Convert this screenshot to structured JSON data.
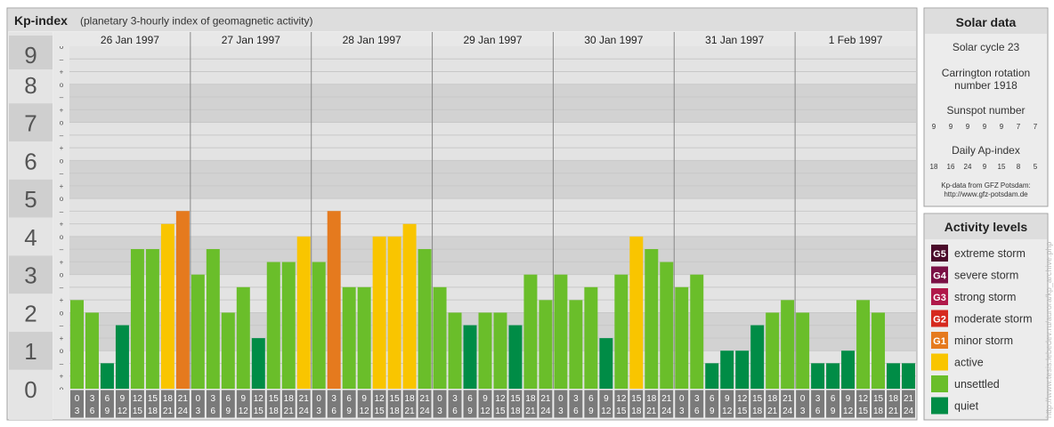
{
  "title": "Kp-index",
  "subtitle": "(planetary 3-hourly index of geomagnetic activity)",
  "chart_data": {
    "type": "bar",
    "ylim": [
      0,
      9
    ],
    "y_ticks": [
      "0",
      "1",
      "2",
      "3",
      "4",
      "5",
      "6",
      "7",
      "8",
      "9"
    ],
    "thirds_marks": [
      "+",
      "o",
      "–"
    ],
    "days": [
      "26 Jan 1997",
      "27 Jan 1997",
      "28 Jan 1997",
      "29 Jan 1997",
      "30 Jan 1997",
      "31 Jan 1997",
      "1 Feb 1997"
    ],
    "hour_labels": [
      [
        "0",
        "3"
      ],
      [
        "3",
        "6"
      ],
      [
        "6",
        "9"
      ],
      [
        "9",
        "12"
      ],
      [
        "12",
        "15"
      ],
      [
        "15",
        "18"
      ],
      [
        "18",
        "21"
      ],
      [
        "21",
        "24"
      ]
    ],
    "values": [
      2.33,
      2.0,
      0.67,
      1.67,
      3.67,
      3.67,
      4.33,
      4.67,
      3.0,
      3.67,
      2.0,
      2.67,
      1.33,
      3.33,
      3.33,
      4.0,
      3.33,
      4.67,
      2.67,
      2.67,
      4.0,
      4.0,
      4.33,
      3.67,
      2.67,
      2.0,
      1.67,
      2.0,
      2.0,
      1.67,
      3.0,
      2.33,
      3.0,
      2.33,
      2.67,
      1.33,
      3.0,
      4.0,
      3.67,
      3.33,
      2.67,
      3.0,
      0.67,
      1.0,
      1.0,
      1.67,
      2.0,
      2.33,
      2.0,
      0.67,
      0.67,
      1.0,
      2.33,
      2.0,
      0.67,
      0.67
    ],
    "colors": {
      "quiet": "#008c46",
      "unsettled": "#6abe2a",
      "active": "#f9c500",
      "minor": "#e57a1e",
      "moderate": "#d6291e",
      "strong": "#b0184a",
      "severe": "#7a1045",
      "extreme": "#4a0a2a"
    }
  },
  "solar": {
    "header": "Solar data",
    "cycle": "Solar cycle 23",
    "carrington_line1": "Carrington rotation",
    "carrington_line2": "number 1918",
    "sunspot_label": "Sunspot number",
    "sunspot_values": [
      "9",
      "9",
      "9",
      "9",
      "9",
      "7",
      "7"
    ],
    "ap_label": "Daily Ap-index",
    "ap_values": [
      "18",
      "16",
      "24",
      "9",
      "15",
      "8",
      "5"
    ],
    "source_line1": "Kp-data from GFZ Potsdam:",
    "source_line2": "http://www.gfz-potsdam.de"
  },
  "activity": {
    "header": "Activity levels",
    "items": [
      {
        "badge": "G5",
        "label": "extreme storm",
        "color": "#4a0a2a"
      },
      {
        "badge": "G4",
        "label": "severe storm",
        "color": "#7a1045"
      },
      {
        "badge": "G3",
        "label": "strong storm",
        "color": "#b0184a"
      },
      {
        "badge": "G2",
        "label": "moderate storm",
        "color": "#d6291e"
      },
      {
        "badge": "G1",
        "label": "minor storm",
        "color": "#e57a1e"
      },
      {
        "badge": "",
        "label": "active",
        "color": "#f9c500"
      },
      {
        "badge": "",
        "label": "unsettled",
        "color": "#6abe2a"
      },
      {
        "badge": "",
        "label": "quiet",
        "color": "#008c46"
      }
    ]
  },
  "watermark": "http://www.tesis.lebedev.ru/aurora/kp_archive.php"
}
